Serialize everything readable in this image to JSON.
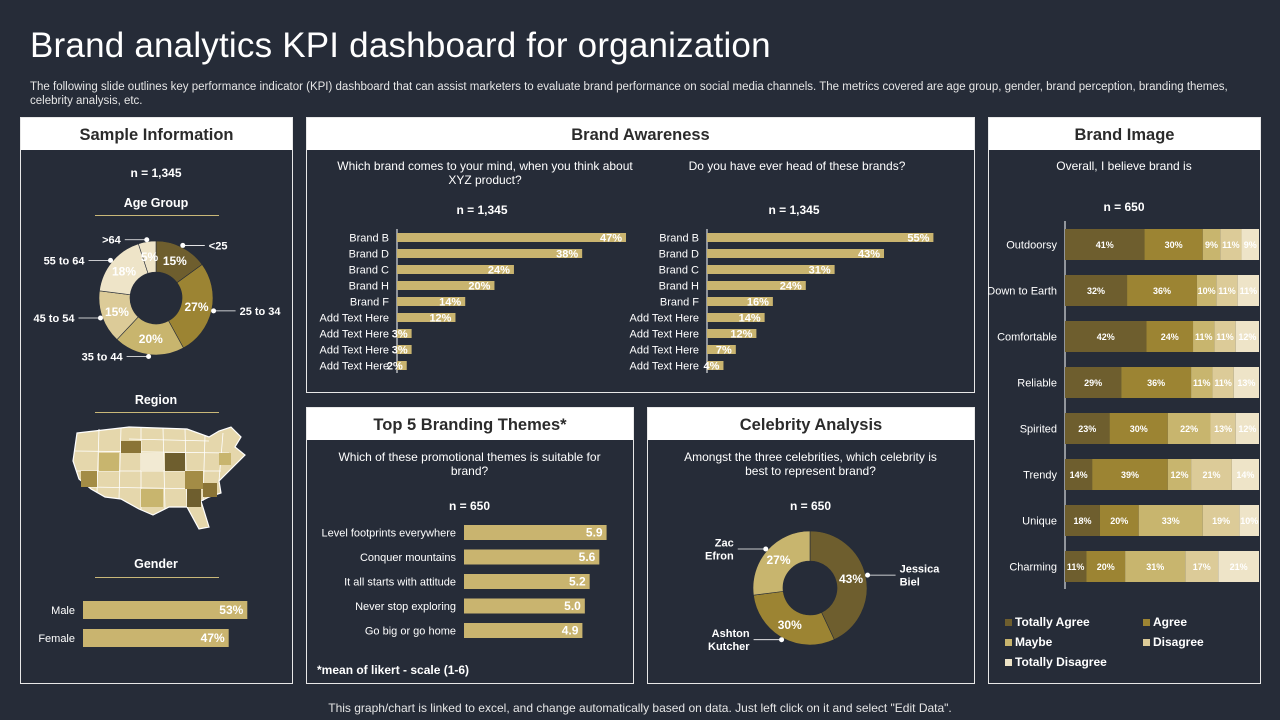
{
  "header": {
    "title": "Brand analytics KPI dashboard for organization",
    "subtitle": "The following slide outlines key performance indicator (KPI) dashboard that can assist marketers to evaluate brand performance on social media channels. The metrics covered are age group, gender, brand perception, branding themes, celebrity analysis, etc."
  },
  "footer": "This graph/chart is linked to excel, and change automatically based on data. Just left click on it and select \"Edit Data\".",
  "colors": {
    "background": "#262c38",
    "dark_gold": "#6e5e2e",
    "gold": "#9c8433",
    "tan": "#c8b56e",
    "light_tan": "#dccb98",
    "cream": "#eee4c8",
    "bar": "#c9b46f"
  },
  "sample_info": {
    "title": "Sample Information",
    "n": "n = 1,345",
    "age_title": "Age Group",
    "region_title": "Region",
    "gender_title": "Gender",
    "map_icon": "usa-map-icon"
  },
  "brand_awareness": {
    "title": "Brand Awareness",
    "q1": "Which brand comes to your mind, when you think about XYZ product?",
    "q2": "Do you have ever head of these brands?",
    "n1": "n = 1,345",
    "n2": "n = 1,345"
  },
  "themes": {
    "title": "Top 5 Branding Themes*",
    "question": "Which of these promotional themes is suitable for brand?",
    "n": "n = 650",
    "note": "*mean of likert - scale (1-6)"
  },
  "celebrity": {
    "title": "Celebrity Analysis",
    "question": "Amongst the three celebrities, which celebrity is best to represent brand?",
    "n": "n = 650"
  },
  "brand_image": {
    "title": "Brand Image",
    "question": "Overall, I believe brand is",
    "n": "n = 650",
    "legend": [
      "Totally Agree",
      "Agree",
      "Maybe",
      "Disagree",
      "Totally Disagree"
    ]
  },
  "chart_data": [
    {
      "id": "age",
      "type": "pie",
      "title": "Age Group",
      "categories": [
        "<25",
        "25 to 34",
        "35 to 44",
        "45 to 54",
        "55 to 64",
        ">64"
      ],
      "values": [
        15,
        27,
        20,
        15,
        18,
        5
      ],
      "value_labels": [
        "15%",
        "27%",
        "20%",
        "15%",
        "18%",
        "5%"
      ]
    },
    {
      "id": "gender",
      "type": "bar",
      "title": "Gender",
      "categories": [
        "Male",
        "Female"
      ],
      "values": [
        53,
        47
      ],
      "value_labels": [
        "53%",
        "47%"
      ],
      "xlim": [
        0,
        100
      ]
    },
    {
      "id": "awareness_recall",
      "type": "bar",
      "title": "Which brand comes to your mind, when you think about XYZ product?",
      "categories": [
        "Brand B",
        "Brand D",
        "Brand C",
        "Brand H",
        "Brand F",
        "Add Text Here",
        "Add Text Here",
        "Add Text Here",
        "Add Text Here"
      ],
      "values": [
        47,
        38,
        24,
        20,
        14,
        12,
        3,
        3,
        2
      ],
      "value_labels": [
        "47%",
        "38%",
        "24%",
        "20%",
        "14%",
        "12%",
        "3%",
        "3%",
        "2%"
      ],
      "xlim": [
        0,
        55
      ]
    },
    {
      "id": "awareness_heard",
      "type": "bar",
      "title": "Do you have ever head of these brands?",
      "categories": [
        "Brand B",
        "Brand D",
        "Brand C",
        "Brand H",
        "Brand F",
        "Add Text Here",
        "Add Text Here",
        "Add Text Here",
        "Add Text Here"
      ],
      "values": [
        55,
        43,
        31,
        24,
        16,
        14,
        12,
        7,
        4
      ],
      "value_labels": [
        "55%",
        "43%",
        "31%",
        "24%",
        "16%",
        "14%",
        "12%",
        "7%",
        "4%"
      ],
      "xlim": [
        0,
        60
      ]
    },
    {
      "id": "themes",
      "type": "bar",
      "title": "Top 5 Branding Themes",
      "categories": [
        "Level footprints everywhere",
        "Conquer mountains",
        "It all starts with attitude",
        "Never stop exploring",
        "Go big or go home"
      ],
      "values": [
        5.9,
        5.6,
        5.2,
        5.0,
        4.9
      ],
      "value_labels": [
        "5.9",
        "5.6",
        "5.2",
        "5.0",
        "4.9"
      ],
      "xlim": [
        0,
        6
      ]
    },
    {
      "id": "celebrity",
      "type": "pie",
      "title": "Celebrity Analysis",
      "categories": [
        "Jessica Biel",
        "Ashton Kutcher",
        "Zac Efron"
      ],
      "values": [
        43,
        30,
        27
      ],
      "value_labels": [
        "43%",
        "30%",
        "27%"
      ]
    },
    {
      "id": "brand_image",
      "type": "bar",
      "stacked": true,
      "title": "Overall, I believe brand is",
      "categories": [
        "Outdoorsy",
        "Down to Earth",
        "Comfortable",
        "Reliable",
        "Spirited",
        "Trendy",
        "Unique",
        "Charming"
      ],
      "series": [
        {
          "name": "Totally Agree",
          "values": [
            41,
            32,
            42,
            29,
            23,
            14,
            18,
            11
          ]
        },
        {
          "name": "Agree",
          "values": [
            30,
            36,
            24,
            36,
            30,
            39,
            20,
            20
          ]
        },
        {
          "name": "Maybe",
          "values": [
            9,
            10,
            11,
            11,
            22,
            12,
            33,
            31
          ]
        },
        {
          "name": "Disagree",
          "values": [
            11,
            11,
            11,
            11,
            13,
            21,
            19,
            17
          ]
        },
        {
          "name": "Totally Disagree",
          "values": [
            9,
            11,
            12,
            13,
            12,
            14,
            10,
            21
          ]
        }
      ]
    }
  ]
}
